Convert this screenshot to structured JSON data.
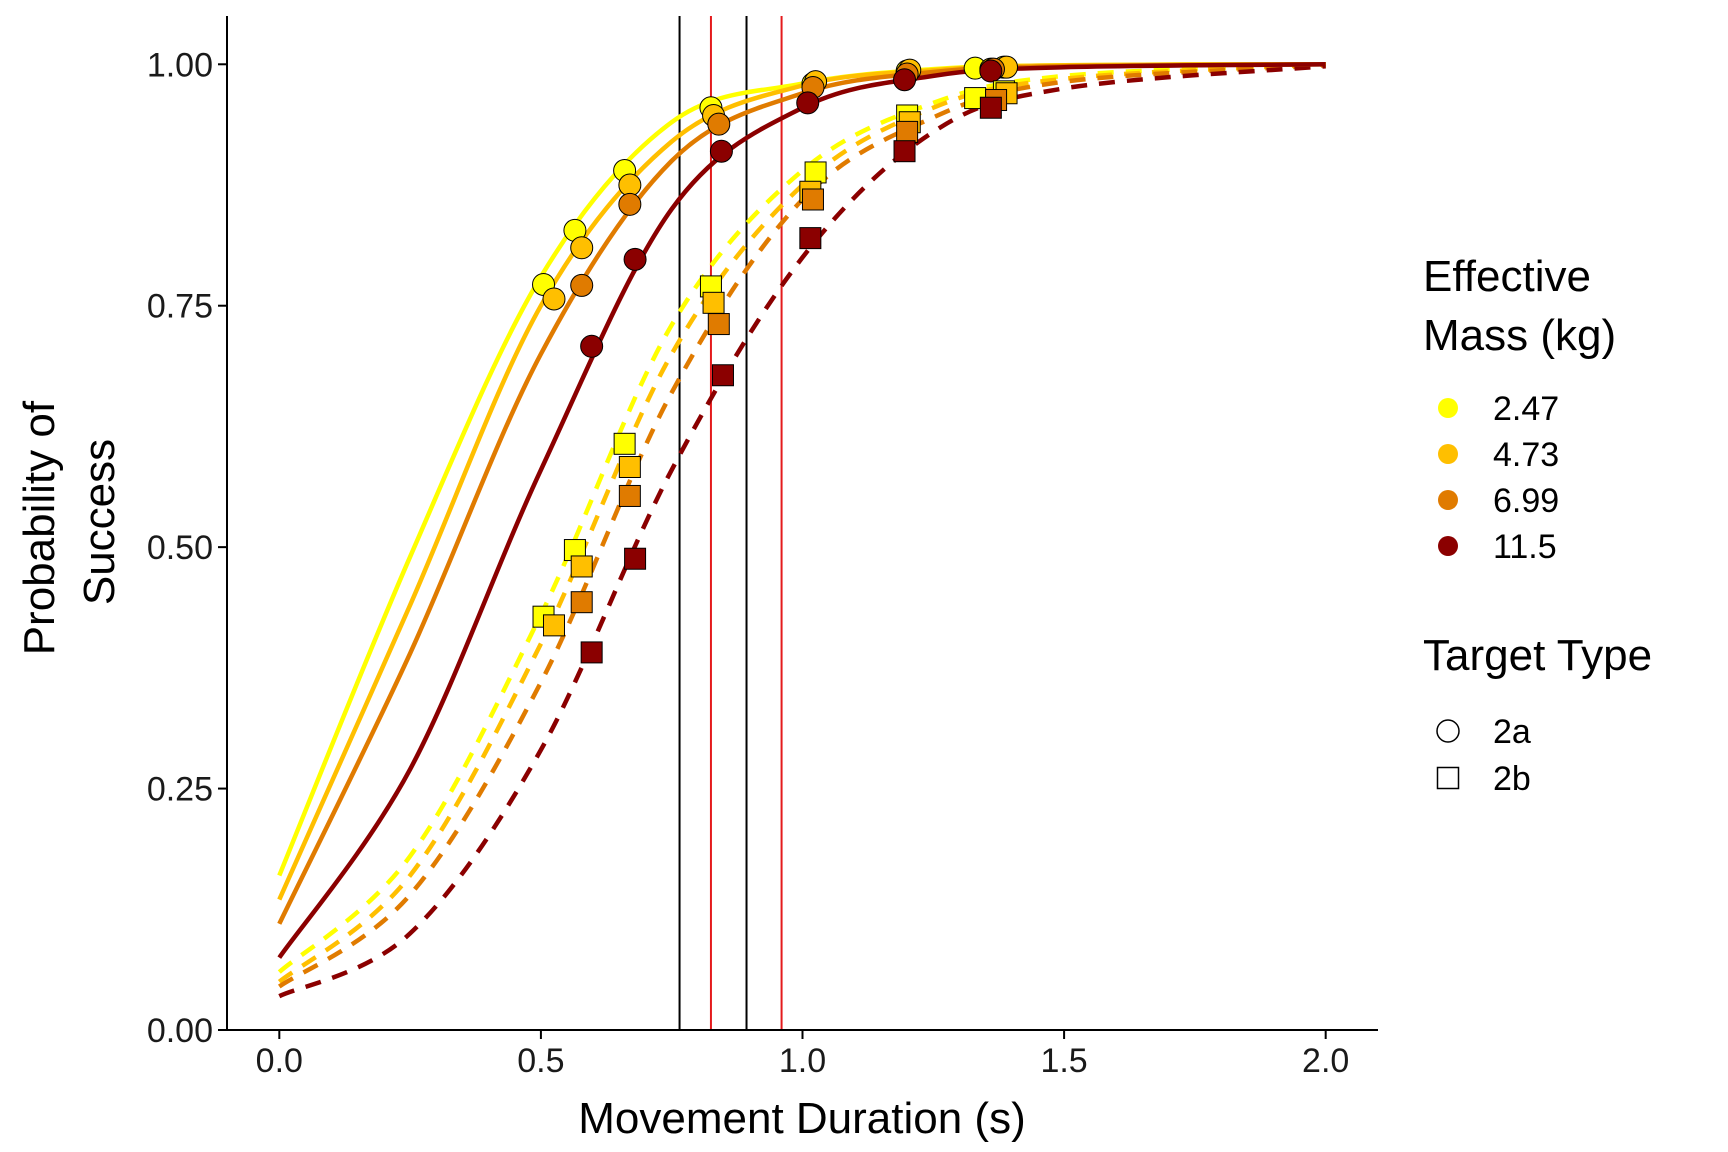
{
  "chart_data": {
    "type": "line",
    "xlabel": "Movement Duration (s)",
    "ylabel_lines": [
      "Probability of",
      "Success"
    ],
    "xlim": [
      -0.1,
      2.1
    ],
    "ylim": [
      0,
      1.05
    ],
    "x_ticks": [
      0.0,
      0.5,
      1.0,
      1.5,
      2.0
    ],
    "x_tick_labels": [
      "0.0",
      "0.5",
      "1.0",
      "1.5",
      "2.0"
    ],
    "y_ticks": [
      0.0,
      0.25,
      0.5,
      0.75,
      1.0
    ],
    "y_tick_labels": [
      "0.00",
      "0.25",
      "0.50",
      "0.75",
      "1.00"
    ],
    "grid": false,
    "legend_placement": "right",
    "vertical_lines": [
      {
        "x": 0.765,
        "color": "#000000"
      },
      {
        "x": 0.825,
        "color": "#e41a1c"
      },
      {
        "x": 0.893,
        "color": "#000000"
      },
      {
        "x": 0.96,
        "color": "#e41a1c"
      }
    ],
    "legend": {
      "mass": {
        "title_lines": [
          "Effective",
          "Mass (kg)"
        ],
        "entries": [
          {
            "label": "2.47",
            "color": "#ffff00"
          },
          {
            "label": "4.73",
            "color": "#ffbf00"
          },
          {
            "label": "6.99",
            "color": "#e07b00"
          },
          {
            "label": "11.5",
            "color": "#8b0000"
          }
        ]
      },
      "target": {
        "title": "Target Type",
        "entries": [
          {
            "label": "2a",
            "shape": "circle",
            "line": "solid"
          },
          {
            "label": "2b",
            "shape": "square",
            "line": "dashed"
          }
        ]
      }
    },
    "curves": [
      {
        "mass": "2.47",
        "target": "2a",
        "x": [
          0,
          0.25,
          0.5,
          0.75,
          1.0,
          1.25,
          1.5,
          2.0
        ],
        "y": [
          0.16,
          0.49,
          0.78,
          0.94,
          0.98,
          0.995,
          0.999,
          1.0
        ]
      },
      {
        "mass": "4.73",
        "target": "2a",
        "x": [
          0,
          0.25,
          0.5,
          0.75,
          1.0,
          1.25,
          1.5,
          2.0
        ],
        "y": [
          0.135,
          0.44,
          0.75,
          0.92,
          0.978,
          0.994,
          0.999,
          1.0
        ]
      },
      {
        "mass": "6.99",
        "target": "2a",
        "x": [
          0,
          0.25,
          0.5,
          0.75,
          1.0,
          1.25,
          1.5,
          2.0
        ],
        "y": [
          0.11,
          0.39,
          0.7,
          0.9,
          0.97,
          0.992,
          0.998,
          1.0
        ]
      },
      {
        "mass": "11.5",
        "target": "2a",
        "x": [
          0,
          0.25,
          0.5,
          0.75,
          1.0,
          1.25,
          1.5,
          2.0
        ],
        "y": [
          0.075,
          0.27,
          0.58,
          0.85,
          0.955,
          0.988,
          0.997,
          1.0
        ]
      },
      {
        "mass": "2.47",
        "target": "2b",
        "x": [
          0,
          0.25,
          0.5,
          0.75,
          1.0,
          1.25,
          1.5,
          2.0
        ],
        "y": [
          0.06,
          0.18,
          0.43,
          0.73,
          0.89,
          0.96,
          0.988,
          1.0
        ]
      },
      {
        "mass": "4.73",
        "target": "2b",
        "x": [
          0,
          0.25,
          0.5,
          0.75,
          1.0,
          1.25,
          1.5,
          2.0
        ],
        "y": [
          0.05,
          0.16,
          0.4,
          0.7,
          0.875,
          0.955,
          0.985,
          1.0
        ]
      },
      {
        "mass": "6.99",
        "target": "2b",
        "x": [
          0,
          0.25,
          0.5,
          0.75,
          1.0,
          1.25,
          1.5,
          2.0
        ],
        "y": [
          0.045,
          0.14,
          0.36,
          0.66,
          0.86,
          0.945,
          0.982,
          0.999
        ]
      },
      {
        "mass": "11.5",
        "target": "2b",
        "x": [
          0,
          0.25,
          0.5,
          0.75,
          1.0,
          1.25,
          1.5,
          2.0
        ],
        "y": [
          0.035,
          0.1,
          0.29,
          0.58,
          0.8,
          0.93,
          0.975,
          0.998
        ]
      }
    ],
    "points": [
      {
        "mass": "2.47",
        "target": "2a",
        "x": [
          0.505,
          0.565,
          0.66,
          0.825,
          1.02,
          1.2,
          1.33,
          1.385
        ],
        "y": [
          0.772,
          0.828,
          0.89,
          0.955,
          0.98,
          0.993,
          0.996,
          0.997
        ]
      },
      {
        "mass": "4.73",
        "target": "2a",
        "x": [
          0.525,
          0.578,
          0.67,
          0.83,
          1.025,
          1.205,
          1.36,
          1.39
        ],
        "y": [
          0.757,
          0.81,
          0.875,
          0.947,
          0.982,
          0.994,
          0.995,
          0.997
        ]
      },
      {
        "mass": "6.99",
        "target": "2a",
        "x": [
          0.578,
          0.67,
          0.84,
          1.02,
          1.2,
          1.365
        ],
        "y": [
          0.771,
          0.855,
          0.938,
          0.976,
          0.99,
          0.995
        ]
      },
      {
        "mass": "11.5",
        "target": "2a",
        "x": [
          0.597,
          0.68,
          0.845,
          1.01,
          1.195,
          1.36
        ],
        "y": [
          0.708,
          0.798,
          0.91,
          0.96,
          0.984,
          0.993
        ]
      },
      {
        "mass": "2.47",
        "target": "2b",
        "x": [
          0.505,
          0.565,
          0.66,
          0.825,
          1.025,
          1.2,
          1.33,
          1.385
        ],
        "y": [
          0.428,
          0.497,
          0.607,
          0.77,
          0.888,
          0.947,
          0.965,
          0.972
        ]
      },
      {
        "mass": "4.73",
        "target": "2b",
        "x": [
          0.525,
          0.578,
          0.67,
          0.83,
          1.015,
          1.205,
          1.39
        ],
        "y": [
          0.419,
          0.48,
          0.583,
          0.753,
          0.868,
          0.94,
          0.97
        ]
      },
      {
        "mass": "6.99",
        "target": "2b",
        "x": [
          0.578,
          0.67,
          0.84,
          1.02,
          1.2,
          1.37
        ],
        "y": [
          0.443,
          0.553,
          0.731,
          0.86,
          0.93,
          0.963
        ]
      },
      {
        "mass": "11.5",
        "target": "2b",
        "x": [
          0.597,
          0.68,
          0.848,
          1.015,
          1.195,
          1.36
        ],
        "y": [
          0.391,
          0.488,
          0.678,
          0.82,
          0.91,
          0.955
        ]
      }
    ]
  }
}
